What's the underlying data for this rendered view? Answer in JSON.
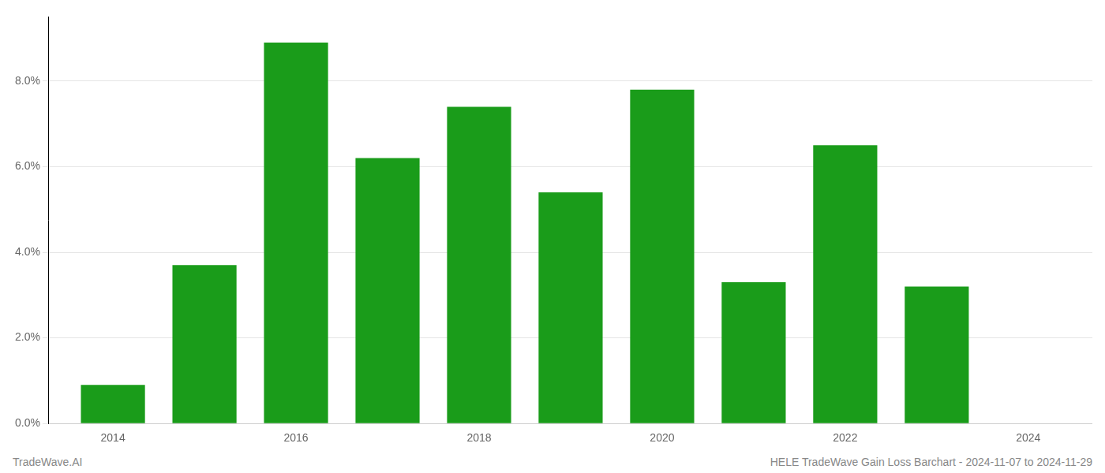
{
  "chart_data": {
    "type": "bar",
    "x": [
      2014,
      2015,
      2016,
      2017,
      2018,
      2019,
      2020,
      2021,
      2022,
      2023
    ],
    "values": [
      0.009,
      0.037,
      0.089,
      0.062,
      0.074,
      0.054,
      0.078,
      0.033,
      0.065,
      0.032
    ],
    "color": "#1a9c1a",
    "xlim": [
      2013.3,
      2024.7
    ],
    "xticks": [
      2014,
      2016,
      2018,
      2020,
      2022,
      2024
    ],
    "ylim": [
      0,
      0.095
    ],
    "yticks": [
      {
        "value": 0.0,
        "label": "0.0%"
      },
      {
        "value": 0.02,
        "label": "2.0%"
      },
      {
        "value": 0.04,
        "label": "4.0%"
      },
      {
        "value": 0.06,
        "label": "6.0%"
      },
      {
        "value": 0.08,
        "label": "8.0%"
      }
    ],
    "grid": "y",
    "annotations": [
      "TradeWave.AI",
      "HELE TradeWave Gain Loss Barchart - 2024-11-07 to 2024-11-29"
    ]
  }
}
